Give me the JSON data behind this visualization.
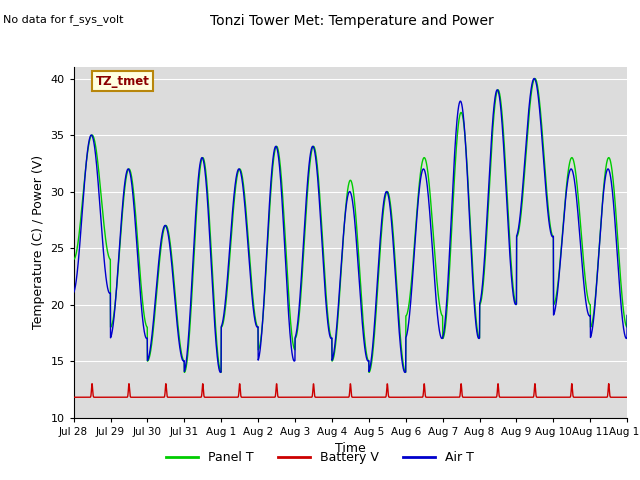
{
  "title": "Tonzi Tower Met: Temperature and Power",
  "xlabel": "Time",
  "ylabel": "Temperature (C) / Power (V)",
  "ylim": [
    10,
    41
  ],
  "yticks": [
    10,
    15,
    20,
    25,
    30,
    35,
    40
  ],
  "annotation": "No data for f_sys_volt",
  "legend_box_label": "TZ_tmet",
  "legend_entries": [
    "Panel T",
    "Battery V",
    "Air T"
  ],
  "legend_colors": [
    "#00cc00",
    "#cc0000",
    "#0000cc"
  ],
  "xtick_labels": [
    "Jul 28",
    "Jul 29",
    "Jul 30",
    "Jul 31",
    "Aug 1",
    "Aug 2",
    "Aug 3",
    "Aug 4",
    "Aug 5",
    "Aug 6",
    "Aug 7",
    "Aug 8",
    "Aug 9",
    "Aug 10",
    "Aug 11",
    "Aug 12"
  ],
  "panel_color": "#00cc00",
  "battery_color": "#cc0000",
  "air_color": "#0000cc",
  "bg_color": "#dcdcdc",
  "grid_color": "#ffffff",
  "panel_peaks": [
    35,
    32,
    27,
    33,
    32,
    34,
    34,
    31,
    30,
    33,
    37,
    39,
    40,
    33,
    33,
    32
  ],
  "panel_mins": [
    24,
    18,
    15,
    14,
    18,
    16,
    17,
    15,
    14,
    19,
    17,
    20,
    26,
    20,
    18,
    19
  ],
  "air_peaks": [
    35,
    32,
    27,
    33,
    32,
    34,
    34,
    30,
    30,
    32,
    38,
    39,
    40,
    32,
    32,
    32
  ],
  "air_mins": [
    21,
    17,
    15,
    14,
    18,
    15,
    17,
    15,
    14,
    17,
    17,
    20,
    26,
    19,
    17,
    19
  ],
  "battery_base": 11.8,
  "battery_pulse": 1.2
}
